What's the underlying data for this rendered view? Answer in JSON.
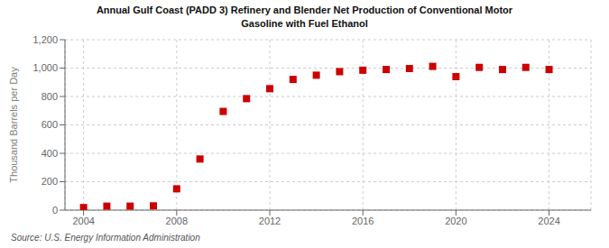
{
  "chart_data": {
    "type": "scatter",
    "title": "Annual Gulf Coast (PADD 3) Refinery and Blender Net Production of Conventional Motor\nGasoline with Fuel Ethanol",
    "y_label": "Thousand Barrels per Day",
    "annotations": [
      "Source: U.S. Energy Information Administration"
    ],
    "x": [
      2004,
      2005,
      2006,
      2007,
      2008,
      2009,
      2010,
      2011,
      2012,
      2013,
      2014,
      2015,
      2016,
      2017,
      2018,
      2019,
      2020,
      2021,
      2022,
      2023,
      2024
    ],
    "values": [
      18,
      28,
      28,
      30,
      150,
      360,
      695,
      785,
      855,
      920,
      950,
      975,
      985,
      990,
      997,
      1012,
      940,
      1005,
      990,
      1005,
      990
    ],
    "color": "#cc0000",
    "marker": "square",
    "xlim": [
      2003.2,
      2025.8
    ],
    "xticks": [
      2004,
      2008,
      2012,
      2016,
      2020,
      2024
    ],
    "ylim": [
      0,
      1200
    ],
    "yticks": [
      0,
      200,
      400,
      600,
      800,
      {
        "value": 1000,
        "label": "1,000"
      },
      {
        "value": 1200,
        "label": "1,200"
      }
    ],
    "grid": true
  }
}
